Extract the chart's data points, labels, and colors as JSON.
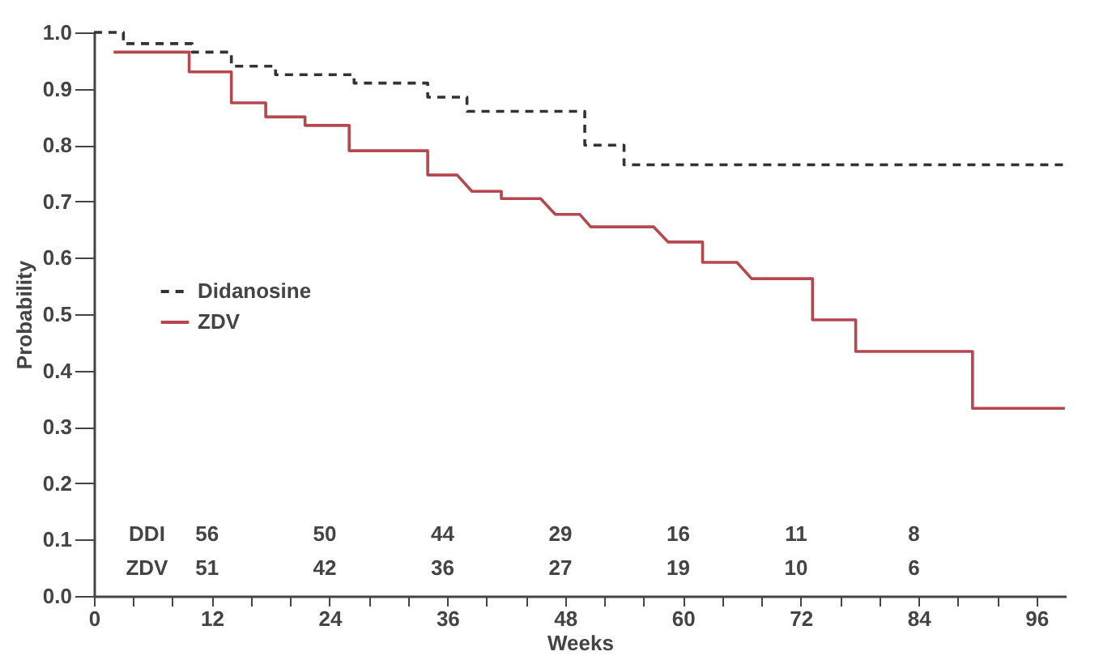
{
  "chart_data": {
    "type": "line",
    "xlabel": "Weeks",
    "ylabel": "Probability",
    "xlim": [
      0,
      99
    ],
    "ylim": [
      0,
      1
    ],
    "xticks": [
      0,
      {
        "value": 4,
        "label": null
      },
      {
        "value": 8,
        "label": null
      },
      12,
      {
        "value": 16,
        "label": null
      },
      {
        "value": 20,
        "label": null
      },
      24,
      {
        "value": 28,
        "label": null
      },
      {
        "value": 32,
        "label": null
      },
      36,
      {
        "value": 40,
        "label": null
      },
      {
        "value": 44,
        "label": null
      },
      48,
      {
        "value": 52,
        "label": null
      },
      {
        "value": 56,
        "label": null
      },
      60,
      {
        "value": 64,
        "label": null
      },
      {
        "value": 68,
        "label": null
      },
      72,
      {
        "value": 76,
        "label": null
      },
      {
        "value": 80,
        "label": null
      },
      84,
      {
        "value": 88,
        "label": null
      },
      {
        "value": 92,
        "label": null
      },
      96
    ],
    "yticks": [
      {
        "value": 0,
        "label": "0.0"
      },
      0.1,
      0.2,
      0.3,
      0.4,
      0.5,
      0.6,
      0.7,
      0.8,
      0.9,
      {
        "value": 1,
        "label": "1.0"
      }
    ],
    "grid": false,
    "legend": "left",
    "marker": "none",
    "series": [
      {
        "name": "Didanosine",
        "color": "#333333",
        "line_style": "dashed",
        "x": [
          0,
          3,
          3,
          10,
          10,
          14,
          14,
          18.5,
          18.5,
          26.5,
          26.5,
          34,
          34,
          38,
          38,
          50,
          50,
          54,
          54,
          99
        ],
        "values": [
          1.0,
          1.0,
          0.98,
          0.98,
          0.965,
          0.965,
          0.94,
          0.94,
          0.925,
          0.925,
          0.91,
          0.91,
          0.885,
          0.885,
          0.86,
          0.86,
          0.8,
          0.8,
          0.765,
          0.765
        ]
      },
      {
        "name": "ZDV",
        "color": "#b5474f",
        "line_style": "solid",
        "x": [
          2,
          9.7,
          9.7,
          14,
          14,
          17.5,
          17.5,
          21.5,
          21.5,
          26,
          26,
          34,
          34,
          37,
          38.5,
          41.5,
          41.5,
          45.5,
          47,
          49.5,
          50.6,
          57,
          58.5,
          62,
          62,
          65.5,
          67,
          73.2,
          73.2,
          77.6,
          77.6,
          89.5,
          89.5,
          98.9
        ],
        "values": [
          0.965,
          0.965,
          0.93,
          0.93,
          0.875,
          0.875,
          0.85,
          0.85,
          0.835,
          0.835,
          0.79,
          0.79,
          0.747,
          0.747,
          0.718,
          0.718,
          0.705,
          0.705,
          0.677,
          0.677,
          0.655,
          0.655,
          0.628,
          0.628,
          0.592,
          0.592,
          0.563,
          0.563,
          0.49,
          0.49,
          0.434,
          0.434,
          0.333,
          0.333
        ]
      }
    ],
    "annotations": [
      "DDI 56 50 44 29 16 11 8",
      "ZDV 51 42 36 27 19 10 6"
    ]
  }
}
